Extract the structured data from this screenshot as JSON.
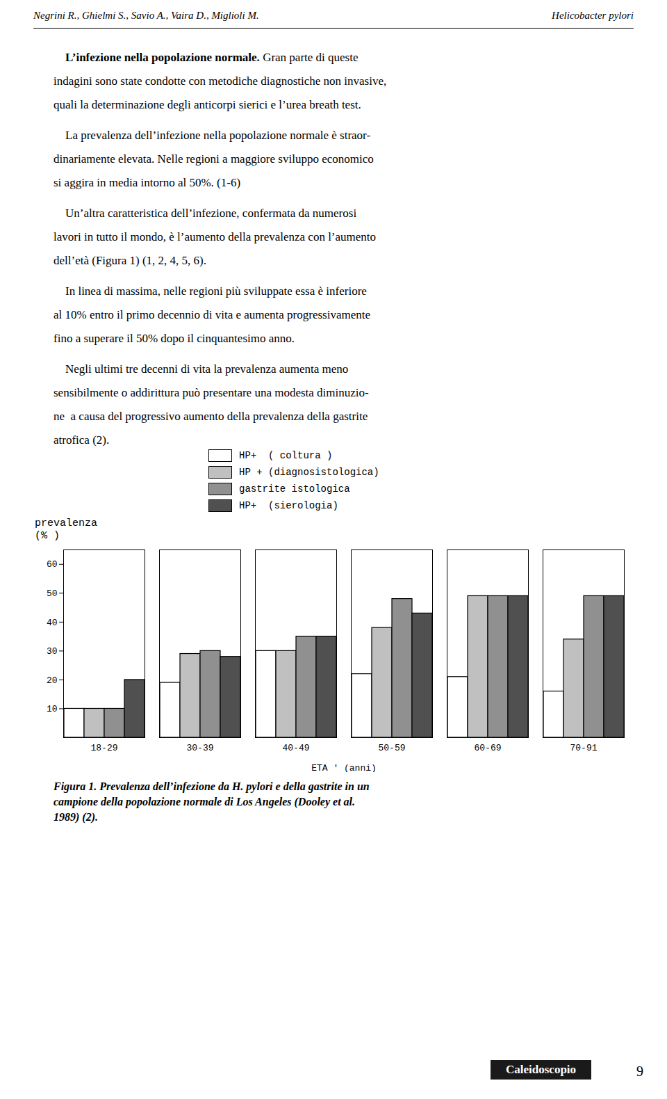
{
  "chart_data": {
    "type": "bar",
    "categories": [
      "18-29",
      "30-39",
      "40-49",
      "50-59",
      "60-69",
      "70-91"
    ],
    "series": [
      {
        "name": "HP+  ( coltura )",
        "color": "#ffffff",
        "values": [
          10,
          19,
          30,
          22,
          21,
          16
        ]
      },
      {
        "name": "HP + (diagnosistologica)",
        "color": "#c0c0c0",
        "values": [
          10,
          29,
          30,
          38,
          49,
          34
        ]
      },
      {
        "name": "gastrite istologica",
        "color": "#909090",
        "values": [
          10,
          30,
          35,
          48,
          49,
          49
        ]
      },
      {
        "name": "HP+  (sierologia)",
        "color": "#505050",
        "values": [
          20,
          28,
          35,
          43,
          49,
          49
        ]
      }
    ],
    "xlabel": "ETA ' (anni)",
    "ylabel": "prevalenza\n(% )",
    "ylim": [
      0,
      65
    ],
    "yticks": [
      10,
      20,
      30,
      40,
      50,
      60
    ],
    "grid": false,
    "legend": "upper left",
    "annotations": [
      "Negrini R., Ghielmi S., Savio A., Vaira D., Miglioli M.",
      "Helicobacter pylori",
      "    L’infezione nella popolazione normale.",
      " Gran parte di queste",
      "indagini sono state condotte con metodiche diagnostiche non invasive,",
      "quali la determinazione degli anticorpi sierici e l’urea breath test.",
      "    La prevalenza dell’infezione nella popolazione normale è straor-",
      "dinariamente elevata. Nelle regioni a maggiore sviluppo economico",
      "si aggira in media intorno al 50%. (1-6)",
      "    Un’altra caratteristica dell’infezione, confermata da numerosi",
      "lavori in tutto il mondo, è l’aumento della prevalenza con l’aumento",
      "dell’età (Figura 1) (1, 2, 4, 5, 6).",
      "    In linea di massima, nelle regioni più sviluppate essa è inferiore",
      "al 10% entro il primo decennio di vita e aumenta progressivamente",
      "fino a superare il 50% dopo il cinquantesimo anno.",
      "    Negli ultimi tre decenni di vita la prevalenza aumenta meno",
      "sensibilmente o addirittura può presentare una modesta diminuzio-",
      "ne  a causa del progressivo aumento della prevalenza della gastrite",
      "atrofica (2).",
      "Figura 1. Prevalenza dell’infezione da H. pylori e della gastrite in un\ncampione della popolazione normale di Los Angeles (Dooley et al.\n1989) (2).",
      "Caleidoscopio",
      "9"
    ]
  }
}
